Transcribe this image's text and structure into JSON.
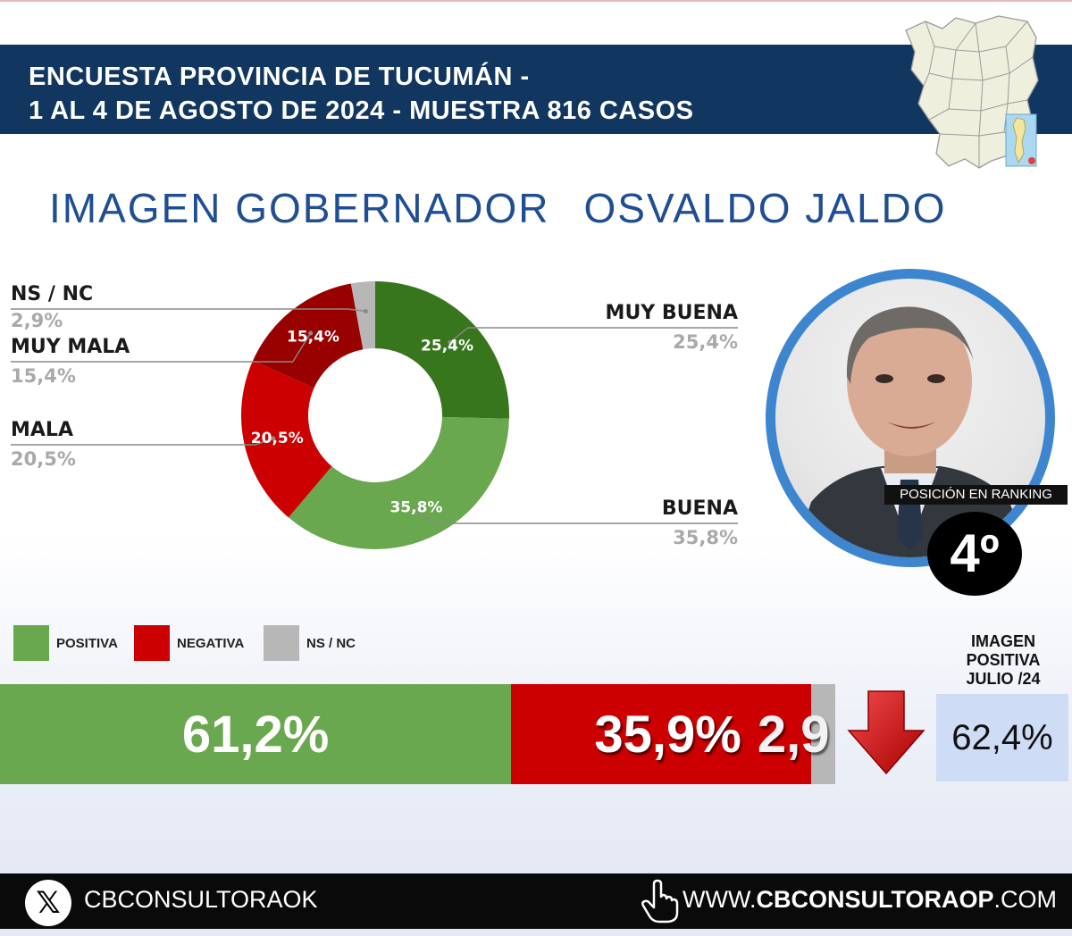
{
  "header": {
    "line1": "ENCUESTA PROVINCIA DE TUCUMÁN -",
    "line2": "1 AL 4 DE AGOSTO DE 2024 - MUESTRA 816 CASOS"
  },
  "title": {
    "part1": "IMAGEN GOBERNADOR",
    "part2": "OSVALDO JALDO"
  },
  "chart_data": [
    {
      "type": "pie",
      "categories": [
        "MUY BUENA",
        "BUENA",
        "MALA",
        "MUY MALA",
        "NS / NC"
      ],
      "values": [
        25.4,
        35.8,
        20.5,
        15.4,
        2.9
      ],
      "value_labels": [
        "25,4%",
        "35,8%",
        "20,5%",
        "15,4%",
        "2,9%"
      ],
      "colors": [
        "#38761d",
        "#6aa84f",
        "#cc0000",
        "#990000",
        "#b7b7b7"
      ],
      "legend": "outside-labels"
    },
    {
      "type": "bar",
      "categories": [
        "POSITIVA",
        "NEGATIVA",
        "NS / NC"
      ],
      "values": [
        61.2,
        35.9,
        2.9
      ],
      "value_labels": [
        "61,2%",
        "35,9%",
        "2,9"
      ],
      "colors": [
        "#6aa84f",
        "#cc0000",
        "#b7b7b7"
      ],
      "stacked": true,
      "orientation": "horizontal",
      "legend": "top-left"
    }
  ],
  "ranking": {
    "label": "POSICIÓN EN RANKING",
    "value": "4º"
  },
  "trend": {
    "direction": "down",
    "color": "#cc0000"
  },
  "previous": {
    "title_line1": "IMAGEN",
    "title_line2": "POSITIVA",
    "title_line3": "JULIO /24",
    "value": "62,4%"
  },
  "footer": {
    "icon": "x-logo-icon",
    "handle": "CBCONSULTORAOK",
    "site_prefix": "WWW.",
    "site_bold": "CBCONSULTORAOP",
    "site_suffix": ".COM"
  }
}
